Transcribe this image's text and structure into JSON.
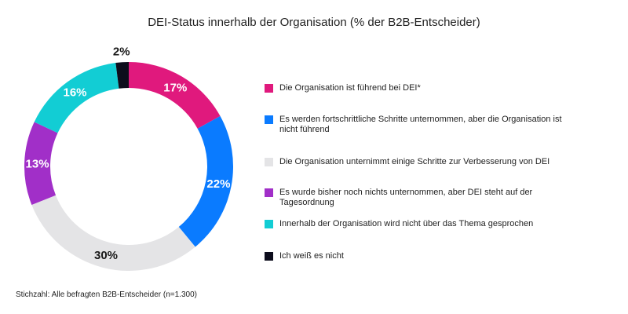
{
  "chart_data": {
    "type": "pie",
    "variant": "donut",
    "title": "DEI-Status innerhalb der Organisation (% der B2B-Entscheider)",
    "unit": "%",
    "slices": [
      {
        "label": "Die Organisation ist führend bei DEI*",
        "value": 17,
        "display": "17%",
        "color": "#e0197d",
        "text_color": "#ffffff"
      },
      {
        "label": "Es werden fortschrittliche Schritte unternommen, aber die Organisation ist nicht führend",
        "value": 22,
        "display": "22%",
        "color": "#0a7bff",
        "text_color": "#ffffff"
      },
      {
        "label": "Die Organisation unternimmt einige Schritte zur Verbesserung von DEI",
        "value": 30,
        "display": "30%",
        "color": "#e4e4e6",
        "text_color": "#1a1a1a"
      },
      {
        "label": "Es wurde bisher noch nichts unternommen, aber DEI steht auf der Tagesordnung",
        "value": 13,
        "display": "13%",
        "color": "#a12fc8",
        "text_color": "#ffffff"
      },
      {
        "label": "Innerhalb der Organisation wird nicht über das Thema gesprochen",
        "value": 16,
        "display": "16%",
        "color": "#12cdd4",
        "text_color": "#ffffff"
      },
      {
        "label": "Ich weiß es nicht",
        "value": 2,
        "display": "2%",
        "color": "#0d0d1c",
        "text_color": "#1a1a1a"
      }
    ],
    "legend_position": "right"
  },
  "footnote": "Stichzahl: Alle befragten B2B-Entscheider (n=1.300)"
}
